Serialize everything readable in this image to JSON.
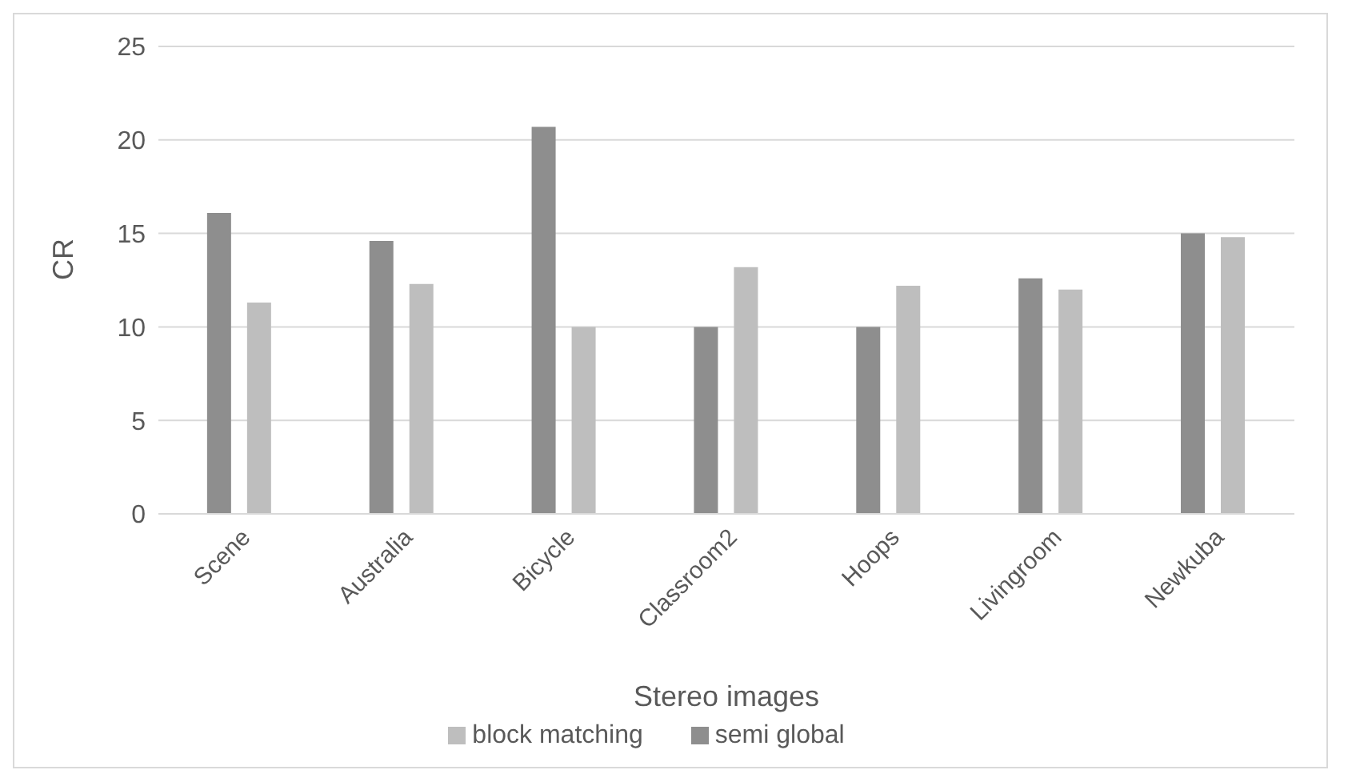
{
  "chart_data": {
    "type": "bar",
    "xlabel": "Stereo images",
    "ylabel": "CR",
    "categories": [
      "Scene",
      "Australia",
      "Bicycle",
      "Classroom2",
      "Hoops",
      "Livingroom",
      "Newkuba"
    ],
    "series": [
      {
        "name": "semi global",
        "color": "#8e8e8e",
        "values": [
          16.1,
          14.6,
          20.7,
          10.0,
          10.0,
          12.6,
          15.0
        ]
      },
      {
        "name": "block matching",
        "color": "#bebebe",
        "values": [
          11.3,
          12.3,
          10.0,
          13.2,
          12.2,
          12.0,
          14.8
        ]
      }
    ],
    "ylim": [
      0,
      25
    ],
    "yticks": [
      0,
      5,
      10,
      15,
      20,
      25
    ],
    "grid": "y",
    "legend": "bottom"
  }
}
